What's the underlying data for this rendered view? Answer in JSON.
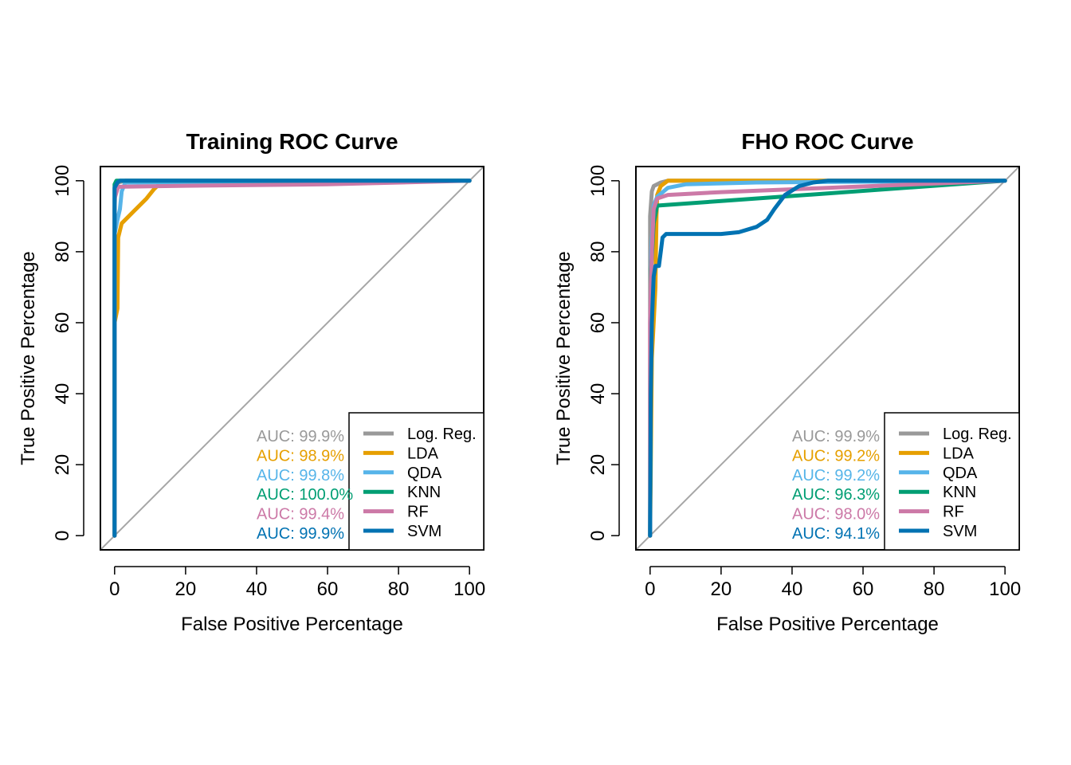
{
  "chart_data": [
    {
      "type": "line",
      "title": "Training ROC Curve",
      "xlabel": "False Positive Percentage",
      "ylabel": "True Positive Percentage",
      "xlim": [
        -4,
        104
      ],
      "ylim": [
        -4,
        104
      ],
      "xticks": [
        "0",
        "20",
        "40",
        "60",
        "80",
        "100"
      ],
      "yticks": [
        "0",
        "20",
        "40",
        "60",
        "80",
        "100"
      ],
      "xtick_values": [
        0,
        20,
        40,
        60,
        80,
        100
      ],
      "ytick_values": [
        0,
        20,
        40,
        60,
        80,
        100
      ],
      "grid": false,
      "legend_position": "bottom-right",
      "diagonal_color": "#A6A6A6",
      "series": [
        {
          "name": "Log. Reg.",
          "color": "#999999",
          "auc": "AUC: 99.9%",
          "points": [
            [
              0,
              0
            ],
            [
              0,
              92
            ],
            [
              0.2,
              98
            ],
            [
              1,
              99.5
            ],
            [
              3,
              100
            ],
            [
              100,
              100
            ]
          ]
        },
        {
          "name": "LDA",
          "color": "#E69F00",
          "auc": "AUC: 98.9%",
          "points": [
            [
              0,
              0
            ],
            [
              0,
              60
            ],
            [
              0.8,
              64
            ],
            [
              1,
              84
            ],
            [
              2,
              88
            ],
            [
              3,
              89
            ],
            [
              5,
              91
            ],
            [
              7,
              93
            ],
            [
              9,
              95
            ],
            [
              11,
              97.5
            ],
            [
              12.5,
              99
            ],
            [
              15,
              99.5
            ],
            [
              100,
              100
            ]
          ]
        },
        {
          "name": "QDA",
          "color": "#56B4E9",
          "auc": "AUC: 99.8%",
          "points": [
            [
              0,
              0
            ],
            [
              0,
              85
            ],
            [
              0.8,
              89
            ],
            [
              1.5,
              92
            ],
            [
              2,
              97
            ],
            [
              3,
              99.5
            ],
            [
              100,
              100
            ]
          ]
        },
        {
          "name": "KNN",
          "color": "#009E73",
          "auc": "AUC: 100.0%",
          "points": [
            [
              0,
              0
            ],
            [
              0,
              99
            ],
            [
              0.5,
              100
            ],
            [
              100,
              100
            ]
          ]
        },
        {
          "name": "RF",
          "color": "#CC79A7",
          "auc": "AUC: 99.4%",
          "points": [
            [
              0,
              0
            ],
            [
              0,
              95
            ],
            [
              1,
              98.3
            ],
            [
              20,
              98.6
            ],
            [
              60,
              99
            ],
            [
              100,
              100
            ]
          ]
        },
        {
          "name": "SVM",
          "color": "#0072B2",
          "auc": "AUC: 99.9%",
          "points": [
            [
              0,
              0
            ],
            [
              0,
              98
            ],
            [
              0.8,
              99.5
            ],
            [
              1.5,
              100
            ],
            [
              100,
              100
            ]
          ]
        }
      ]
    },
    {
      "type": "line",
      "title": "FHO ROC Curve",
      "xlabel": "False Positive Percentage",
      "ylabel": "True Positive Percentage",
      "xlim": [
        -4,
        104
      ],
      "ylim": [
        -4,
        104
      ],
      "xticks": [
        "0",
        "20",
        "40",
        "60",
        "80",
        "100"
      ],
      "yticks": [
        "0",
        "20",
        "40",
        "60",
        "80",
        "100"
      ],
      "xtick_values": [
        0,
        20,
        40,
        60,
        80,
        100
      ],
      "ytick_values": [
        0,
        20,
        40,
        60,
        80,
        100
      ],
      "grid": false,
      "legend_position": "bottom-right",
      "diagonal_color": "#A6A6A6",
      "series": [
        {
          "name": "Log. Reg.",
          "color": "#999999",
          "auc": "AUC: 99.9%",
          "points": [
            [
              0,
              0
            ],
            [
              0,
              90
            ],
            [
              0.5,
              97
            ],
            [
              1,
              98.5
            ],
            [
              3,
              99.5
            ],
            [
              5,
              100
            ],
            [
              100,
              100
            ]
          ]
        },
        {
          "name": "LDA",
          "color": "#E69F00",
          "auc": "AUC: 99.2%",
          "points": [
            [
              0,
              0
            ],
            [
              0.5,
              50
            ],
            [
              1,
              60
            ],
            [
              1.5,
              70
            ],
            [
              1.8,
              90
            ],
            [
              2,
              96
            ],
            [
              3,
              98.5
            ],
            [
              5,
              100
            ],
            [
              100,
              100
            ]
          ]
        },
        {
          "name": "QDA",
          "color": "#56B4E9",
          "auc": "AUC: 99.2%",
          "points": [
            [
              0,
              0
            ],
            [
              0.3,
              80
            ],
            [
              1,
              93
            ],
            [
              2,
              95.5
            ],
            [
              5,
              98
            ],
            [
              10,
              99
            ],
            [
              30,
              99.5
            ],
            [
              100,
              100
            ]
          ]
        },
        {
          "name": "KNN",
          "color": "#009E73",
          "auc": "AUC: 96.3%",
          "points": [
            [
              0,
              0
            ],
            [
              0.3,
              75
            ],
            [
              1,
              88
            ],
            [
              2,
              93
            ],
            [
              100,
              100
            ]
          ]
        },
        {
          "name": "RF",
          "color": "#CC79A7",
          "auc": "AUC: 98.0%",
          "points": [
            [
              0,
              0
            ],
            [
              0,
              60
            ],
            [
              0.5,
              80
            ],
            [
              1,
              92
            ],
            [
              2,
              95
            ],
            [
              5,
              96
            ],
            [
              20,
              96.8
            ],
            [
              50,
              98
            ],
            [
              100,
              100
            ]
          ]
        },
        {
          "name": "SVM",
          "color": "#0072B2",
          "auc": "AUC: 94.1%",
          "points": [
            [
              0,
              0
            ],
            [
              0.2,
              40
            ],
            [
              0.5,
              60
            ],
            [
              1,
              73
            ],
            [
              1.5,
              76
            ],
            [
              2.5,
              76
            ],
            [
              3,
              80
            ],
            [
              3.5,
              84
            ],
            [
              4.5,
              85
            ],
            [
              10,
              85
            ],
            [
              20,
              85
            ],
            [
              25,
              85.5
            ],
            [
              30,
              87
            ],
            [
              33,
              89
            ],
            [
              35,
              92
            ],
            [
              38,
              96
            ],
            [
              42,
              98.5
            ],
            [
              46,
              99.5
            ],
            [
              50,
              100
            ],
            [
              100,
              100
            ]
          ]
        }
      ]
    }
  ]
}
